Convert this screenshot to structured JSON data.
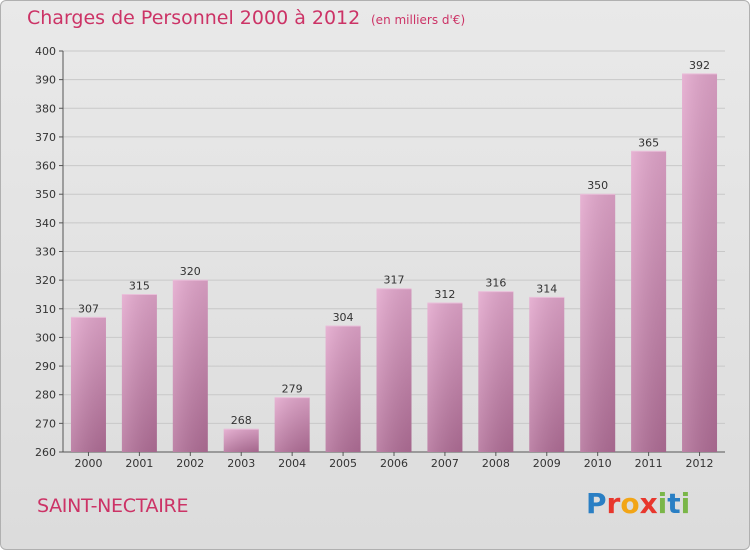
{
  "title": "Charges de Personnel 2000 à 2012",
  "subtitle": "(en milliers d'€)",
  "commune": "SAINT-NECTAIRE",
  "logo": {
    "text": "Proxiti",
    "letters": [
      "P",
      "r",
      "o",
      "x",
      "i",
      "t",
      "i"
    ],
    "colors": [
      "#2a7fc4",
      "#e8372d",
      "#f2a516",
      "#e8372d",
      "#7ab648",
      "#2a7fc4",
      "#7ab648"
    ]
  },
  "colors": {
    "title": "#cc3366",
    "bar_top": "#e3a6cc",
    "bar_bottom": "#b26f98",
    "grid": "#c8c8c8"
  },
  "chart_data": {
    "type": "bar",
    "title": "Charges de Personnel 2000 à 2012",
    "subtitle": "(en milliers d'€)",
    "xlabel": "",
    "ylabel": "",
    "categories": [
      "2000",
      "2001",
      "2002",
      "2003",
      "2004",
      "2005",
      "2006",
      "2007",
      "2008",
      "2009",
      "2010",
      "2011",
      "2012"
    ],
    "values": [
      307,
      315,
      320,
      268,
      279,
      304,
      317,
      312,
      316,
      314,
      350,
      365,
      392
    ],
    "ylim": [
      260,
      400
    ],
    "ytick_step": 10,
    "grid": true
  }
}
